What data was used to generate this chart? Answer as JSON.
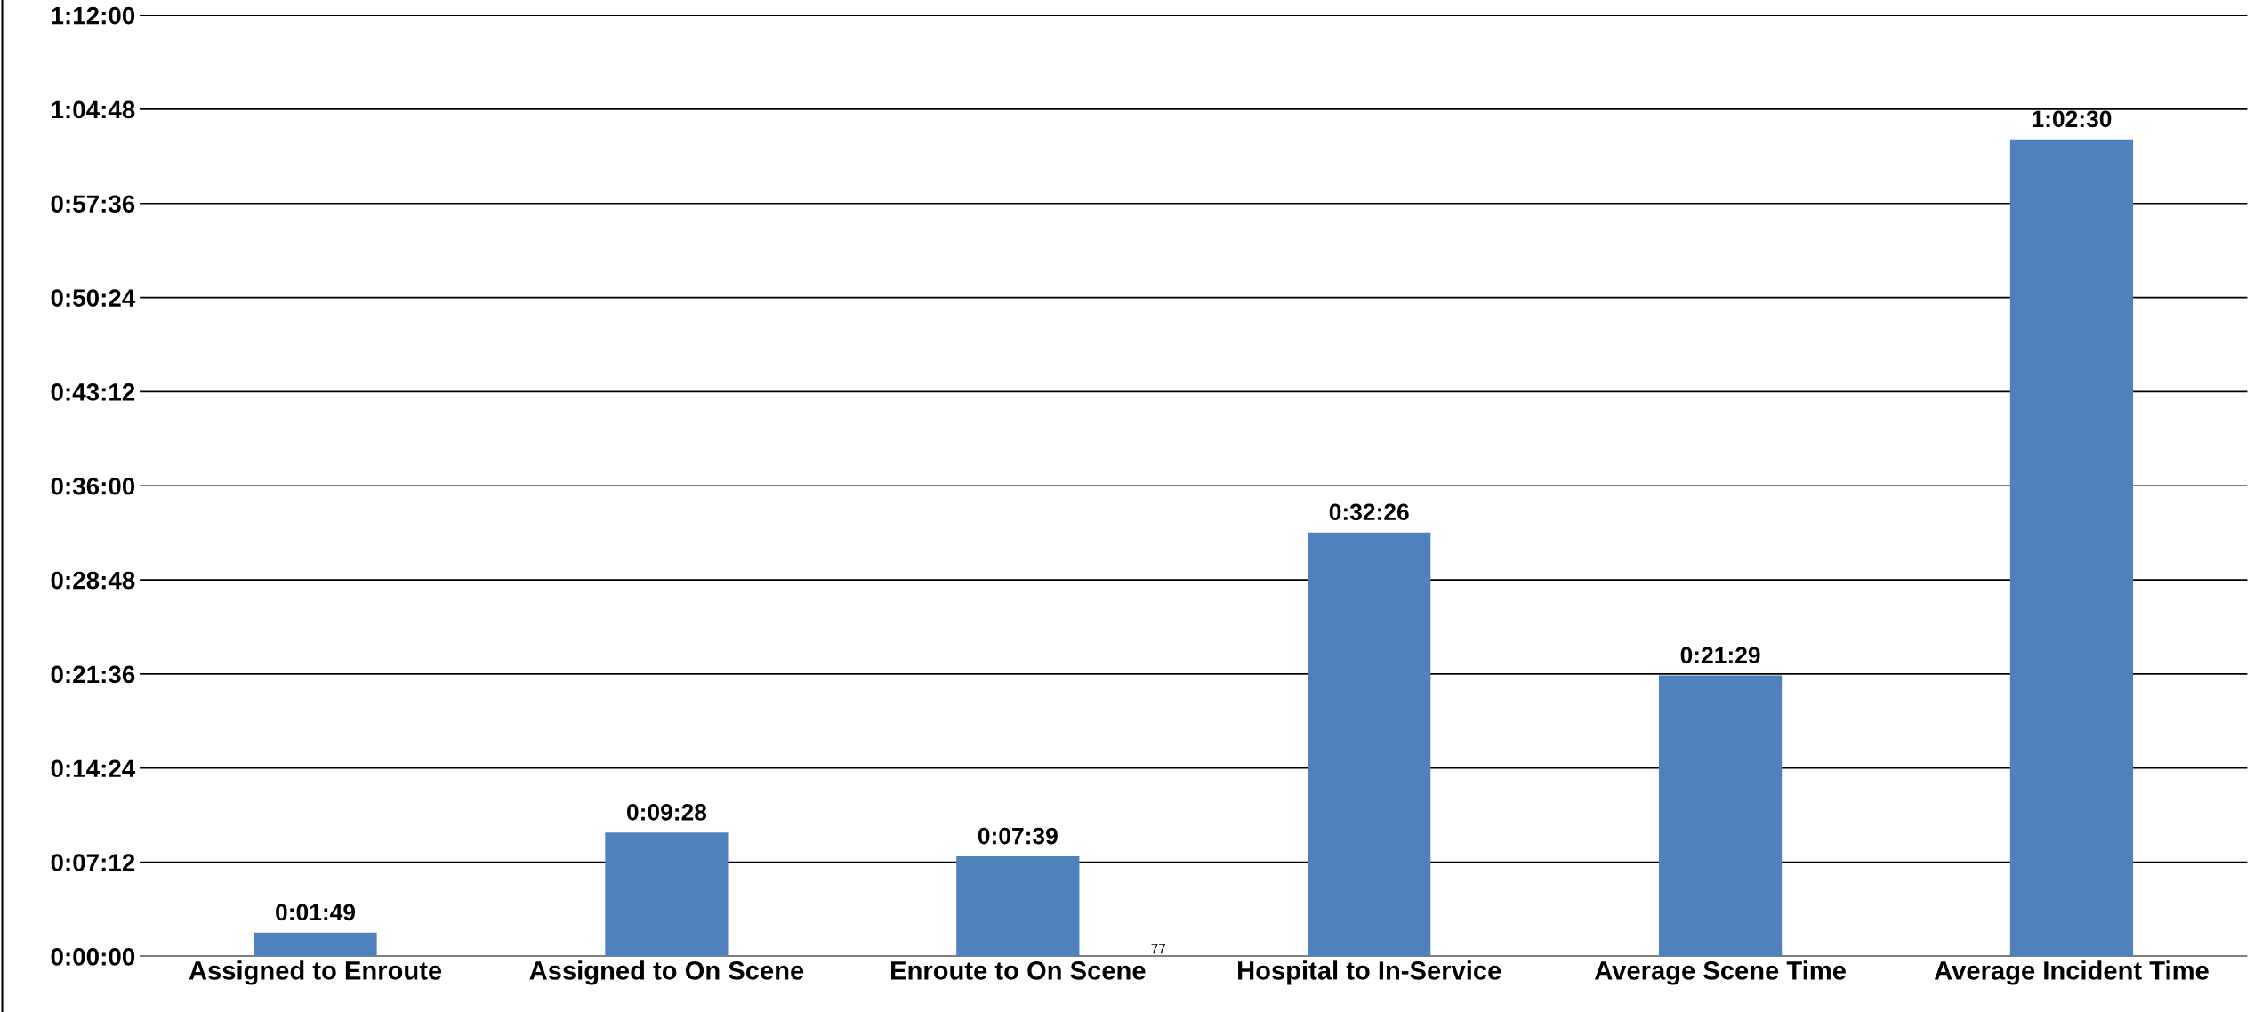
{
  "chart_data": {
    "type": "bar",
    "categories": [
      "Assigned to Enroute",
      "Assigned to On Scene",
      "Enroute to On Scene",
      "Hospital to In-Service",
      "Average Scene Time",
      "Average Incident Time"
    ],
    "values": [
      109,
      568,
      459,
      1946,
      1289,
      3750
    ],
    "value_labels": [
      "0:01:49",
      "0:09:28",
      "0:07:39",
      "0:32:26",
      "0:21:29",
      "1:02:30"
    ],
    "color": "#4f81bd",
    "ylim": [
      0,
      4320
    ],
    "yticks": [
      {
        "value": 0,
        "label": "0:00:00"
      },
      {
        "value": 432,
        "label": "0:07:12"
      },
      {
        "value": 864,
        "label": "0:14:24"
      },
      {
        "value": 1296,
        "label": "0:21:36"
      },
      {
        "value": 1728,
        "label": "0:28:48"
      },
      {
        "value": 2160,
        "label": "0:36:00"
      },
      {
        "value": 2592,
        "label": "0:43:12"
      },
      {
        "value": 3024,
        "label": "0:50:24"
      },
      {
        "value": 3456,
        "label": "0:57:36"
      },
      {
        "value": 3888,
        "label": "1:04:48"
      },
      {
        "value": 4320,
        "label": "1:12:00"
      }
    ],
    "grid": "y",
    "annotations": [
      "77"
    ]
  }
}
